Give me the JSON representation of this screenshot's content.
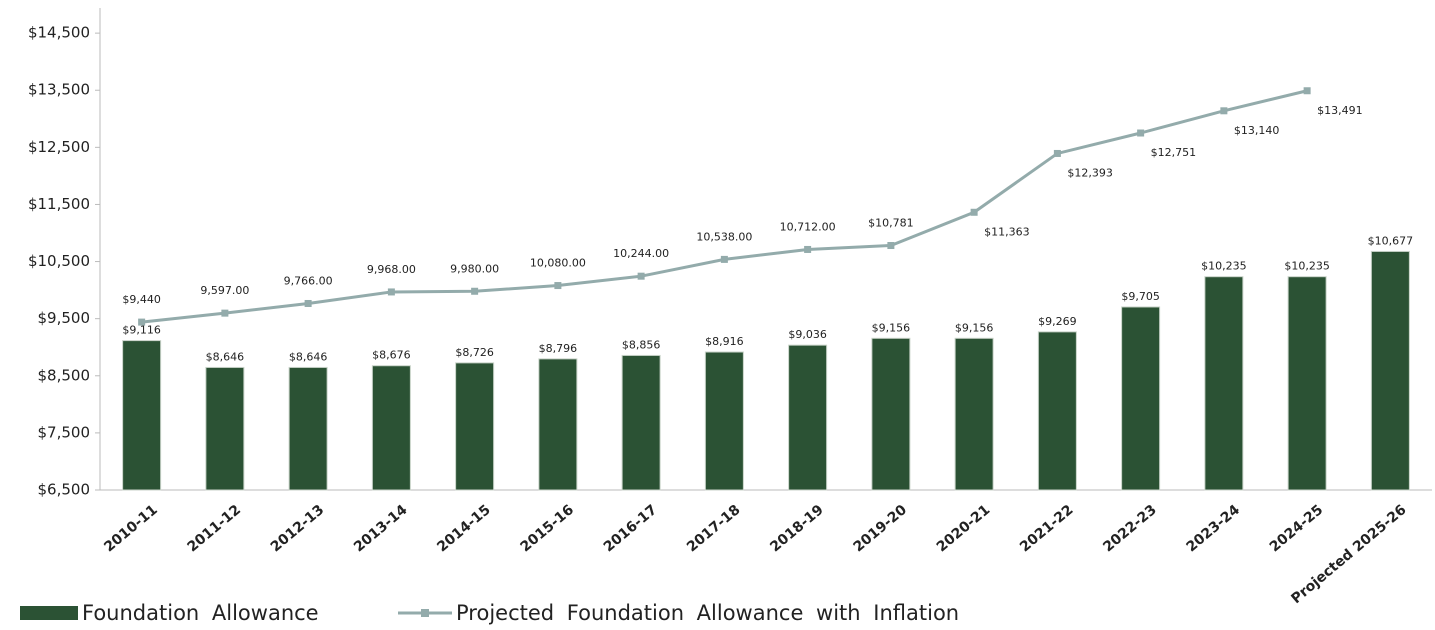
{
  "chart_data": {
    "type": "bar",
    "categories": [
      "2010-11",
      "2011-12",
      "2012-13",
      "2013-14",
      "2014-15",
      "2015-16",
      "2016-17",
      "2017-18",
      "2018-19",
      "2019-20",
      "2020-21",
      "2021-22",
      "2022-23",
      "2023-24",
      "2024-25",
      "Projected 2025-26"
    ],
    "series": [
      {
        "name": "Foundation Allowance",
        "type": "bar",
        "color": "#2b5234",
        "values": [
          9116,
          8646,
          8646,
          8676,
          8726,
          8796,
          8856,
          8916,
          9036,
          9156,
          9156,
          9269,
          9705,
          10235,
          10235,
          10677
        ],
        "value_labels": [
          "$9,116",
          "$8,646",
          "$8,646",
          "$8,676",
          "$8,726",
          "$8,796",
          "$8,856",
          "$8,916",
          "$9,036",
          "$9,156",
          "$9,156",
          "$9,269",
          "$9,705",
          "$10,235",
          "$10,235",
          "$10,677"
        ]
      },
      {
        "name": "Projected Foundation Allowance with Inflation",
        "type": "line",
        "color": "#93abab",
        "values": [
          9440,
          9597,
          9766,
          9968,
          9980,
          10080,
          10244,
          10538,
          10712,
          10781,
          11363,
          12393,
          12751,
          13140,
          13491,
          null
        ],
        "value_labels": [
          "$9,440",
          "9,597.00",
          "9,766.00",
          "9,968.00",
          "9,980.00",
          "10,080.00",
          "10,244.00",
          "10,538.00",
          "10,712.00",
          "$10,781",
          "$11,363",
          "$12,393",
          "$12,751",
          "$13,140",
          "$13,491",
          null
        ]
      }
    ],
    "ylim": [
      6500,
      14940
    ],
    "yticks": [
      {
        "value": 6500,
        "label": "$6,500"
      },
      {
        "value": 7500,
        "label": "$7,500"
      },
      {
        "value": 8500,
        "label": "$8,500"
      },
      {
        "value": 9500,
        "label": "$9,500"
      },
      {
        "value": 10500,
        "label": "$10,500"
      },
      {
        "value": 11500,
        "label": "$11,500"
      },
      {
        "value": 12500,
        "label": "$12,500"
      },
      {
        "value": 13500,
        "label": "$13,500"
      },
      {
        "value": 14500,
        "label": "$14,500"
      }
    ],
    "grid": false,
    "legend": "bottom-left"
  }
}
